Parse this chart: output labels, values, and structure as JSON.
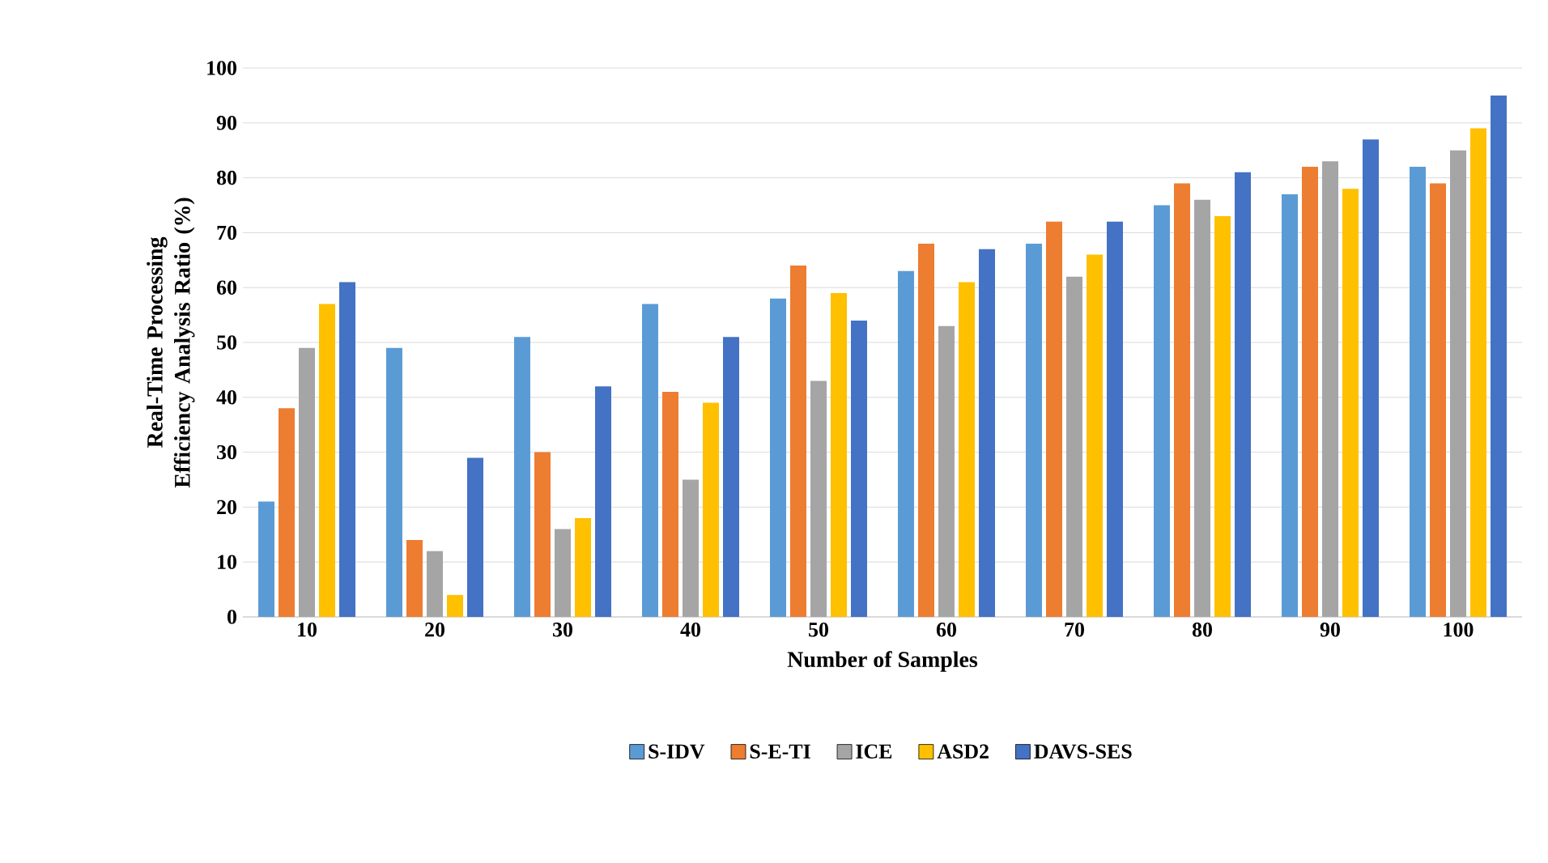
{
  "chart_data": {
    "type": "bar",
    "xlabel": "Number of Samples",
    "ylabel": "Real-Time Processing Efficiency Analysis Ratio (%)",
    "categories": [
      "10",
      "20",
      "30",
      "40",
      "50",
      "60",
      "70",
      "80",
      "90",
      "100"
    ],
    "series": [
      {
        "name": "S-IDV",
        "color": "#5b9bd5",
        "values": [
          21,
          49,
          51,
          57,
          58,
          63,
          68,
          75,
          77,
          82
        ]
      },
      {
        "name": "S-E-TI",
        "color": "#ed7d31",
        "values": [
          38,
          14,
          30,
          41,
          64,
          68,
          72,
          79,
          82,
          79
        ]
      },
      {
        "name": "ICE",
        "color": "#a5a5a5",
        "values": [
          49,
          12,
          16,
          25,
          43,
          53,
          62,
          76,
          83,
          85
        ]
      },
      {
        "name": "ASD2",
        "color": "#ffc000",
        "values": [
          57,
          4,
          18,
          39,
          59,
          61,
          66,
          73,
          78,
          89
        ]
      },
      {
        "name": "DAVS-SES",
        "color": "#4472c4",
        "values": [
          61,
          29,
          42,
          51,
          54,
          67,
          72,
          81,
          87,
          95
        ]
      }
    ],
    "ylim": [
      0,
      100
    ],
    "yticks": [
      0,
      10,
      20,
      30,
      40,
      50,
      60,
      70,
      80,
      90,
      100
    ],
    "grid": "y",
    "legend": "bottom"
  }
}
